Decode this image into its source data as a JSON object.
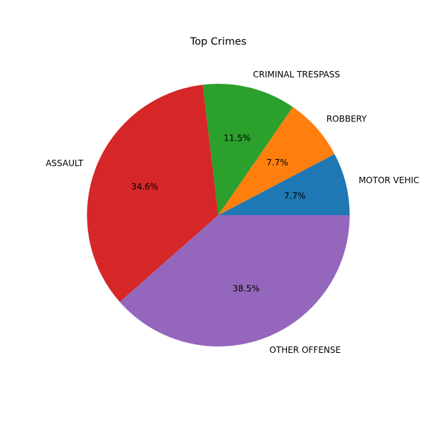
{
  "chart_data": {
    "type": "pie",
    "title": "Top Crimes",
    "categories": [
      "MOTOR VEHICLE THEFT",
      "ROBBERY",
      "CRIMINAL TRESPASS",
      "ASSAULT",
      "OTHER OFFENSE"
    ],
    "label_text": [
      "MOTOR VEHIC",
      "ROBBERY",
      "CRIMINAL TRESPASS",
      "ASSAULT",
      "OTHER OFFENSE"
    ],
    "values": [
      7.7,
      7.7,
      11.5,
      34.6,
      38.5
    ],
    "percent_labels": [
      "7.7%",
      "7.7%",
      "11.5%",
      "34.6%",
      "38.5%"
    ],
    "colors": [
      "#1f77b4",
      "#ff7f0e",
      "#2ca02c",
      "#d62728",
      "#9467bd"
    ],
    "start_angle_deg": 0,
    "direction": "counterclockwise"
  }
}
